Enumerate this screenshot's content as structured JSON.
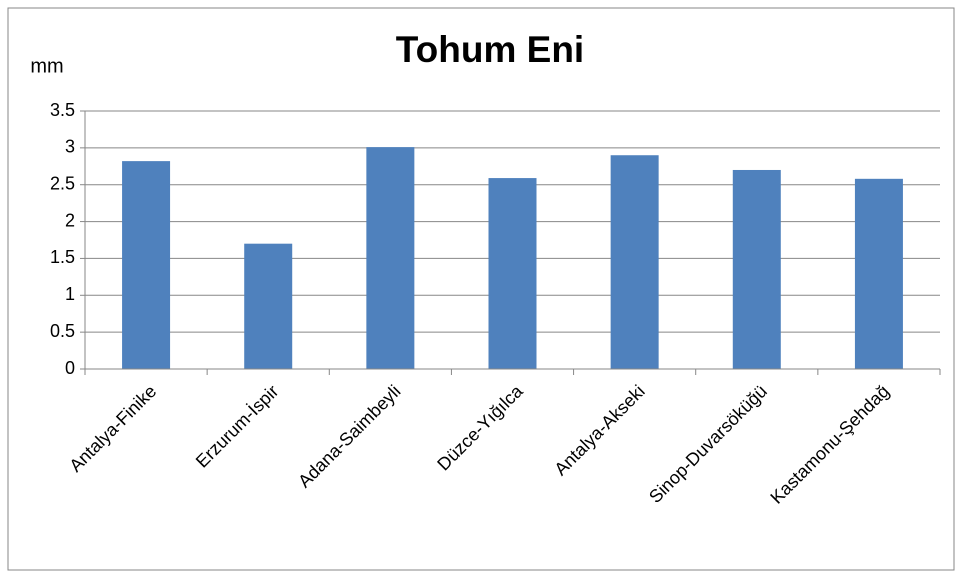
{
  "chart_data": {
    "type": "bar",
    "title": "Tohum Eni",
    "y_label": "mm",
    "categories": [
      "Antalya-Finike",
      "Erzurum-İspir",
      "Adana-Saimbeyli",
      "Düzce-Yığılca",
      "Antalya-Akseki",
      "Sinop-Duvarsöküğü",
      "Kastamonu-Şehdağ"
    ],
    "values": [
      2.82,
      1.7,
      3.01,
      2.59,
      2.9,
      2.7,
      2.58
    ],
    "color": "#4f81bd",
    "ylim": [
      0,
      3.5
    ],
    "yticks": [
      0,
      0.5,
      1,
      1.5,
      2,
      2.5,
      3,
      3.5
    ],
    "grid": true
  }
}
